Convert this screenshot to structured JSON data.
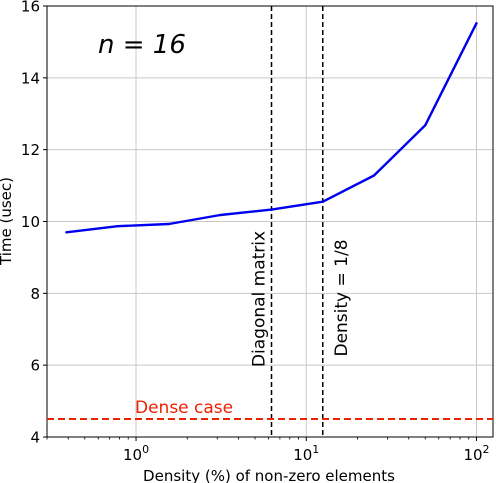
{
  "chart_data": {
    "type": "line",
    "xscale": "log",
    "xlim": [
      0.3,
      125
    ],
    "ylim": [
      4,
      16
    ],
    "xlabel": "Density (%) of non-zero elements",
    "ylabel": "Time (usec)",
    "grid": true,
    "annotation_title": "n = 16",
    "x_ticks": [
      {
        "value": 1,
        "base": "10",
        "exp": "0"
      },
      {
        "value": 10,
        "base": "10",
        "exp": "1"
      },
      {
        "value": 100,
        "base": "10",
        "exp": "2"
      }
    ],
    "y_ticks": [
      4,
      6,
      8,
      10,
      12,
      14,
      16
    ],
    "series": [
      {
        "color": "#0000ee",
        "x": [
          0.39,
          0.78,
          1.56,
          3.125,
          6.25,
          12.5,
          25,
          50,
          100
        ],
        "y": [
          9.7,
          9.87,
          9.93,
          10.18,
          10.33,
          10.55,
          11.28,
          12.68,
          15.52
        ]
      }
    ],
    "vlines": [
      {
        "x": 6.25,
        "label": "Diagonal matrix"
      },
      {
        "x": 12.5,
        "label": "Density = 1/8"
      }
    ],
    "hline": {
      "y": 4.5,
      "label": "Dense case",
      "color": "#ee2200"
    }
  }
}
